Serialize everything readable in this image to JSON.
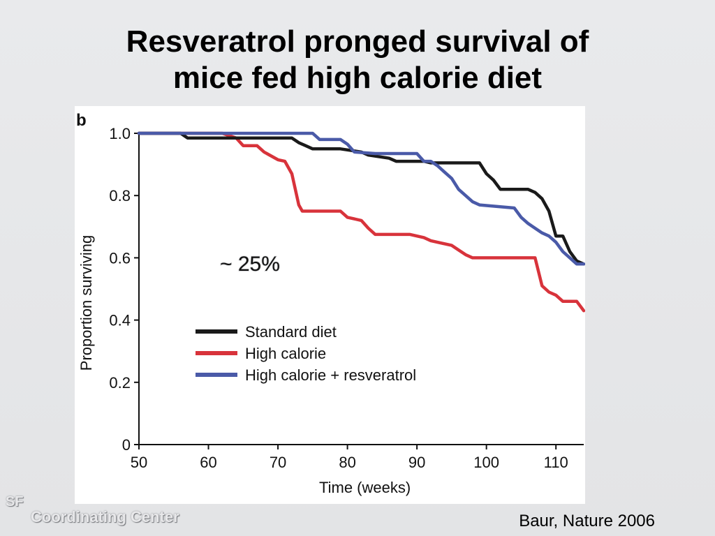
{
  "slide": {
    "title_line1": "Resveratrol pronged survival of",
    "title_line2": "mice fed high calorie diet",
    "citation": "Baur, Nature 2006",
    "watermark_sf": "SF",
    "watermark_text": "Coordinating Center"
  },
  "chart_data": {
    "type": "line",
    "panel_label": "b",
    "xlabel": "Time (weeks)",
    "ylabel": "Proportion surviving",
    "xlim": [
      50,
      114
    ],
    "ylim": [
      0,
      1.0
    ],
    "x_ticks": [
      50,
      60,
      70,
      80,
      90,
      100,
      110
    ],
    "y_ticks": [
      {
        "value": 0,
        "label": "0"
      },
      {
        "value": 0.2,
        "label": "0.2"
      },
      {
        "value": 0.4,
        "label": "0.4"
      },
      {
        "value": 0.6,
        "label": "0.6"
      },
      {
        "value": 0.8,
        "label": "0.8"
      },
      {
        "value": 1.0,
        "label": "1.0"
      }
    ],
    "grid": false,
    "legend_position": "lower-left inside plot",
    "annotation": {
      "text": "~ 25%",
      "x": 72,
      "y": 0.585
    },
    "series": [
      {
        "name": "Standard diet",
        "color": "#1a1a1a",
        "steps": [
          [
            50,
            1.0
          ],
          [
            56,
            1.0
          ],
          [
            57,
            0.985
          ],
          [
            72,
            0.985
          ],
          [
            73,
            0.97
          ],
          [
            74,
            0.96
          ],
          [
            75,
            0.95
          ],
          [
            79,
            0.95
          ],
          [
            82,
            0.94
          ],
          [
            83,
            0.93
          ],
          [
            86,
            0.92
          ],
          [
            87,
            0.91
          ],
          [
            91,
            0.91
          ],
          [
            92,
            0.905
          ],
          [
            99,
            0.905
          ],
          [
            100,
            0.87
          ],
          [
            101,
            0.85
          ],
          [
            102,
            0.82
          ],
          [
            106,
            0.82
          ],
          [
            107,
            0.81
          ],
          [
            108,
            0.79
          ],
          [
            109,
            0.75
          ],
          [
            110,
            0.67
          ],
          [
            111,
            0.67
          ],
          [
            112,
            0.62
          ],
          [
            113,
            0.59
          ],
          [
            114,
            0.58
          ]
        ]
      },
      {
        "name": "High calorie",
        "color": "#d8333b",
        "steps": [
          [
            50,
            1.0
          ],
          [
            62,
            1.0
          ],
          [
            64,
            0.985
          ],
          [
            65,
            0.96
          ],
          [
            67,
            0.96
          ],
          [
            68,
            0.94
          ],
          [
            70,
            0.915
          ],
          [
            71,
            0.91
          ],
          [
            72,
            0.87
          ],
          [
            73,
            0.77
          ],
          [
            73.5,
            0.75
          ],
          [
            79,
            0.75
          ],
          [
            80,
            0.73
          ],
          [
            82,
            0.72
          ],
          [
            83,
            0.695
          ],
          [
            84,
            0.675
          ],
          [
            89,
            0.675
          ],
          [
            91,
            0.665
          ],
          [
            92,
            0.655
          ],
          [
            95,
            0.64
          ],
          [
            96,
            0.625
          ],
          [
            97,
            0.61
          ],
          [
            98,
            0.6
          ],
          [
            101,
            0.6
          ],
          [
            107,
            0.6
          ],
          [
            108,
            0.51
          ],
          [
            109,
            0.49
          ],
          [
            110,
            0.48
          ],
          [
            111,
            0.46
          ],
          [
            113,
            0.46
          ],
          [
            114,
            0.43
          ]
        ]
      },
      {
        "name": "High calorie + resveratrol",
        "color": "#4a5aa8",
        "steps": [
          [
            50,
            1.0
          ],
          [
            75,
            1.0
          ],
          [
            76,
            0.98
          ],
          [
            79,
            0.98
          ],
          [
            80,
            0.965
          ],
          [
            81,
            0.94
          ],
          [
            84,
            0.935
          ],
          [
            90,
            0.935
          ],
          [
            91,
            0.91
          ],
          [
            92,
            0.91
          ],
          [
            93,
            0.895
          ],
          [
            94,
            0.875
          ],
          [
            95,
            0.855
          ],
          [
            96,
            0.82
          ],
          [
            97,
            0.8
          ],
          [
            98,
            0.78
          ],
          [
            99,
            0.77
          ],
          [
            104,
            0.76
          ],
          [
            105,
            0.73
          ],
          [
            106,
            0.71
          ],
          [
            107,
            0.695
          ],
          [
            108,
            0.68
          ],
          [
            109,
            0.67
          ],
          [
            110,
            0.65
          ],
          [
            111,
            0.62
          ],
          [
            112,
            0.6
          ],
          [
            113,
            0.58
          ],
          [
            114,
            0.58
          ]
        ]
      }
    ]
  }
}
